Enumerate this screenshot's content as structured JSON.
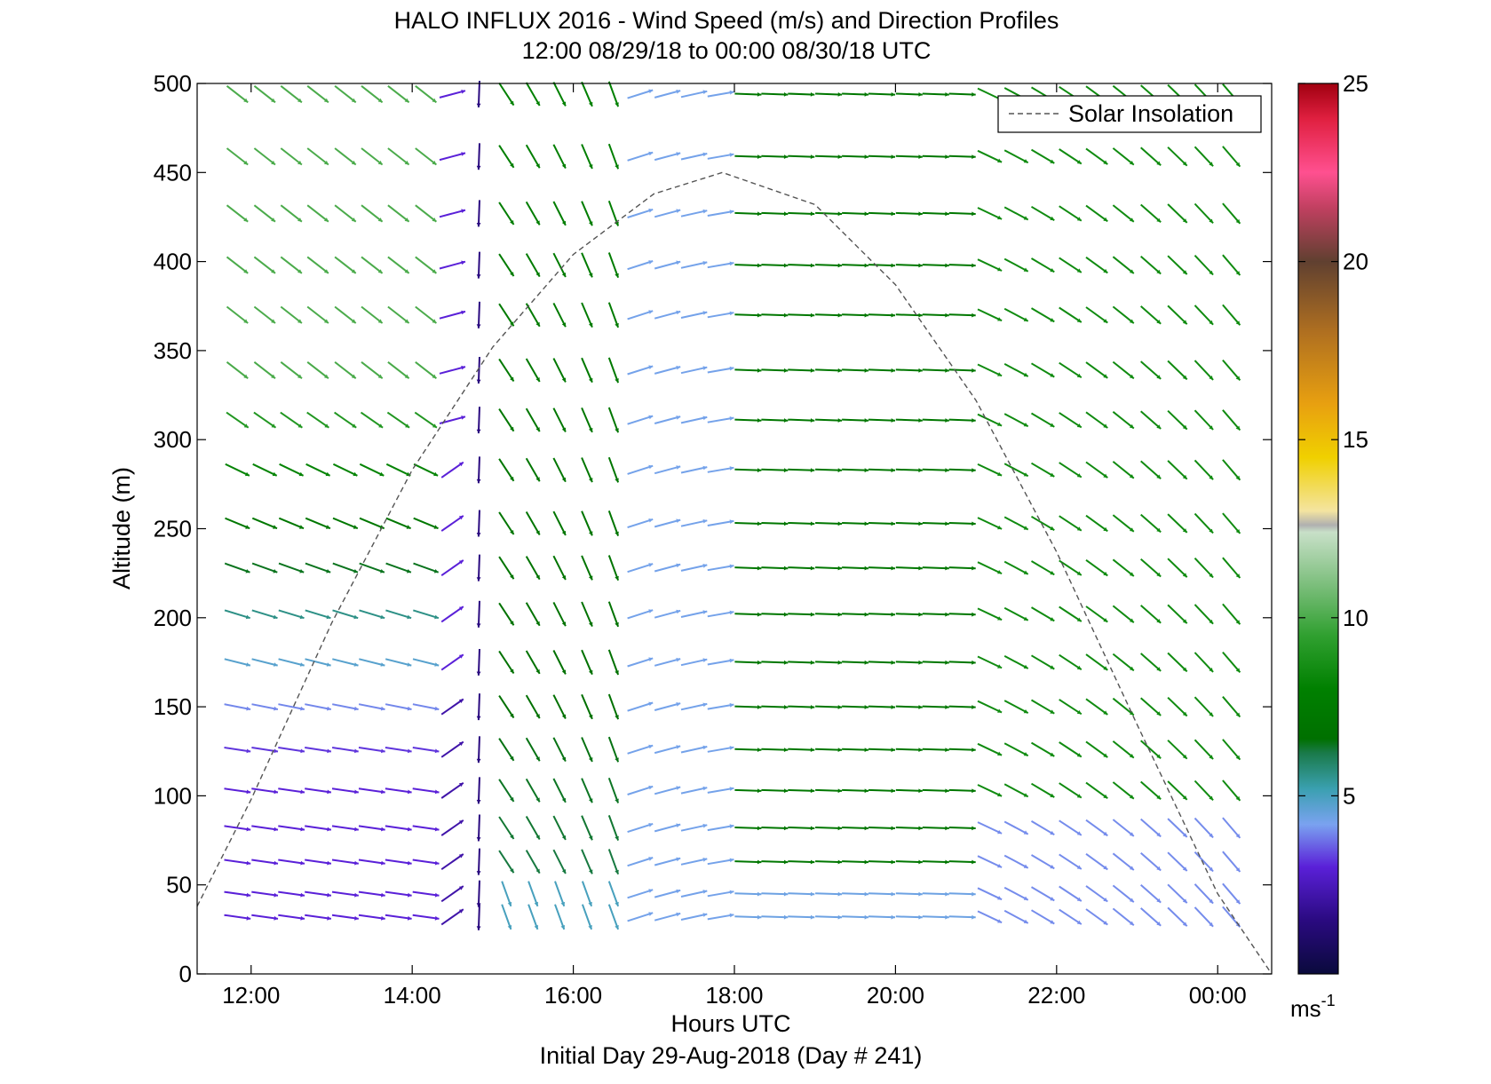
{
  "chart_data": {
    "type": "wind-barb-profile",
    "title": "HALO INFLUX 2016 - Wind Speed (m/s) and Direction Profiles",
    "subtitle": "12:00 08/29/18 to 00:00 08/30/18  UTC",
    "xlabel": "Hours UTC",
    "footer": "Initial Day 29-Aug-2018 (Day # 241)",
    "ylabel": "Altitude (m)",
    "xlim_hours": [
      11.33,
      24.67
    ],
    "ylim": [
      0,
      500
    ],
    "x_ticks": [
      {
        "value": 12,
        "label": "12:00"
      },
      {
        "value": 14,
        "label": "14:00"
      },
      {
        "value": 16,
        "label": "16:00"
      },
      {
        "value": 18,
        "label": "18:00"
      },
      {
        "value": 20,
        "label": "20:00"
      },
      {
        "value": 22,
        "label": "22:00"
      },
      {
        "value": 24,
        "label": "00:00"
      }
    ],
    "y_ticks": [
      0,
      50,
      100,
      150,
      200,
      250,
      300,
      350,
      400,
      450,
      500
    ],
    "legend": {
      "label": "Solar Insolation",
      "position": "top-right",
      "style": "dashed"
    },
    "solar_insolation": {
      "x": [
        11.33,
        12,
        13,
        14,
        15,
        16,
        17,
        17.85,
        19,
        20,
        21,
        22,
        23,
        24,
        24.67
      ],
      "y": [
        38,
        98,
        197,
        283,
        352,
        404,
        438,
        450,
        432,
        387,
        322,
        237,
        140,
        45,
        0
      ]
    },
    "colorbar": {
      "min": 0,
      "max": 25,
      "ticks": [
        {
          "value": 5,
          "label": "5"
        },
        {
          "value": 10,
          "label": "10"
        },
        {
          "value": 15,
          "label": "15"
        },
        {
          "value": 20,
          "label": "20"
        },
        {
          "value": 25,
          "label": "25"
        }
      ],
      "unit_label": "ms",
      "unit_exponent": "-1",
      "colors": [
        {
          "v": 0,
          "c": "#0a0a3c"
        },
        {
          "v": 1.5,
          "c": "#2a0a80"
        },
        {
          "v": 3,
          "c": "#5a20d8"
        },
        {
          "v": 4.2,
          "c": "#7aa2f0"
        },
        {
          "v": 5.2,
          "c": "#3aa0b0"
        },
        {
          "v": 6.2,
          "c": "#1a7a4a"
        },
        {
          "v": 6.6,
          "c": "#007000"
        },
        {
          "v": 8,
          "c": "#008000"
        },
        {
          "v": 9.5,
          "c": "#30a030"
        },
        {
          "v": 11,
          "c": "#80c080"
        },
        {
          "v": 12.4,
          "c": "#c8e0c8"
        },
        {
          "v": 12.6,
          "c": "#b0b0b0"
        },
        {
          "v": 13,
          "c": "#f4e4a0"
        },
        {
          "v": 14.5,
          "c": "#f0d000"
        },
        {
          "v": 16,
          "c": "#e8a010"
        },
        {
          "v": 18,
          "c": "#b07020"
        },
        {
          "v": 20,
          "c": "#604030"
        },
        {
          "v": 21.5,
          "c": "#c04060"
        },
        {
          "v": 22.5,
          "c": "#ff5090"
        },
        {
          "v": 24,
          "c": "#e02040"
        },
        {
          "v": 25,
          "c": "#a00010"
        }
      ]
    },
    "wind_field": {
      "times": [
        11.83,
        12.17,
        12.5,
        12.83,
        13.17,
        13.5,
        13.83,
        14.17,
        14.5,
        14.83,
        15.17,
        15.5,
        15.83,
        16.17,
        16.5,
        16.83,
        17.17,
        17.5,
        17.83,
        18.17,
        18.5,
        18.83,
        19.17,
        19.5,
        19.83,
        20.17,
        20.5,
        20.83,
        21.17,
        21.5,
        21.83,
        22.17,
        22.5,
        22.83,
        23.17,
        23.5,
        23.83,
        24.17
      ],
      "altitudes": [
        32,
        45,
        63,
        82,
        103,
        126,
        150,
        175,
        202,
        228,
        253,
        283,
        311,
        339,
        370,
        398,
        427,
        459,
        494
      ],
      "speed_rule": "early block 12:00-14:00: 3 m/s below 130 m, rising to 10 m/s at 330 m and above; 14:45 column ~1-2 m/s; 15:00-16:30 transition ~5-8 m/s; 16:45-18:00 ~4-5 m/s; 18:15-21:00 ~7 m/s aloft, 4-5 m/s below 60 m; 21:00-24:00 ~8-9 m/s aloft, 3-5 m/s below 100 m",
      "direction_rule": "early block from W-NW (arrows pointing ESE) tilting from horizontal at low levels to steep aloft; 14:45 nearly vertical; 15:00-16:30 from N-NW; 17:00-21:00 from W (near horizontal); 21:00-24:00 from NW"
    }
  }
}
